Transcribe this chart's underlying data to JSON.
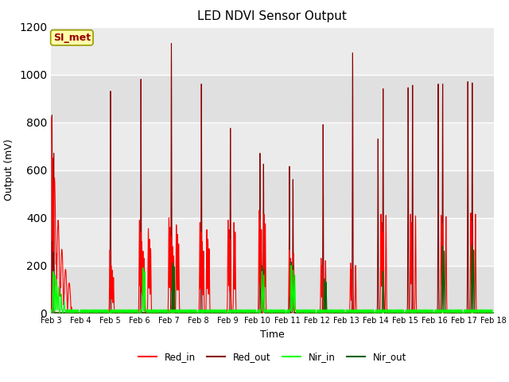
{
  "title": "LED NDVI Sensor Output",
  "xlabel": "Time",
  "ylabel": "Output (mV)",
  "ylim": [
    0,
    1200
  ],
  "figure_bg": "#ffffff",
  "plot_bg": "#ebebeb",
  "annotation_text": "SI_met",
  "annotation_bg": "#ffffaa",
  "annotation_border": "#999900",
  "annotation_text_color": "#990000",
  "tick_labels": [
    "Feb 3",
    "Feb 4",
    "Feb 5",
    "Feb 6",
    "Feb 7",
    "Feb 8",
    "Feb 9",
    "Feb 10",
    "Feb 11",
    "Feb 12",
    "Feb 13",
    "Feb 14",
    "Feb 15",
    "Feb 16",
    "Feb 17",
    "Feb 18"
  ],
  "colors": {
    "Red_in": "#ff0000",
    "Red_out": "#8b0000",
    "Nir_in": "#00ff00",
    "Nir_out": "#006400"
  },
  "linewidth": 0.8
}
